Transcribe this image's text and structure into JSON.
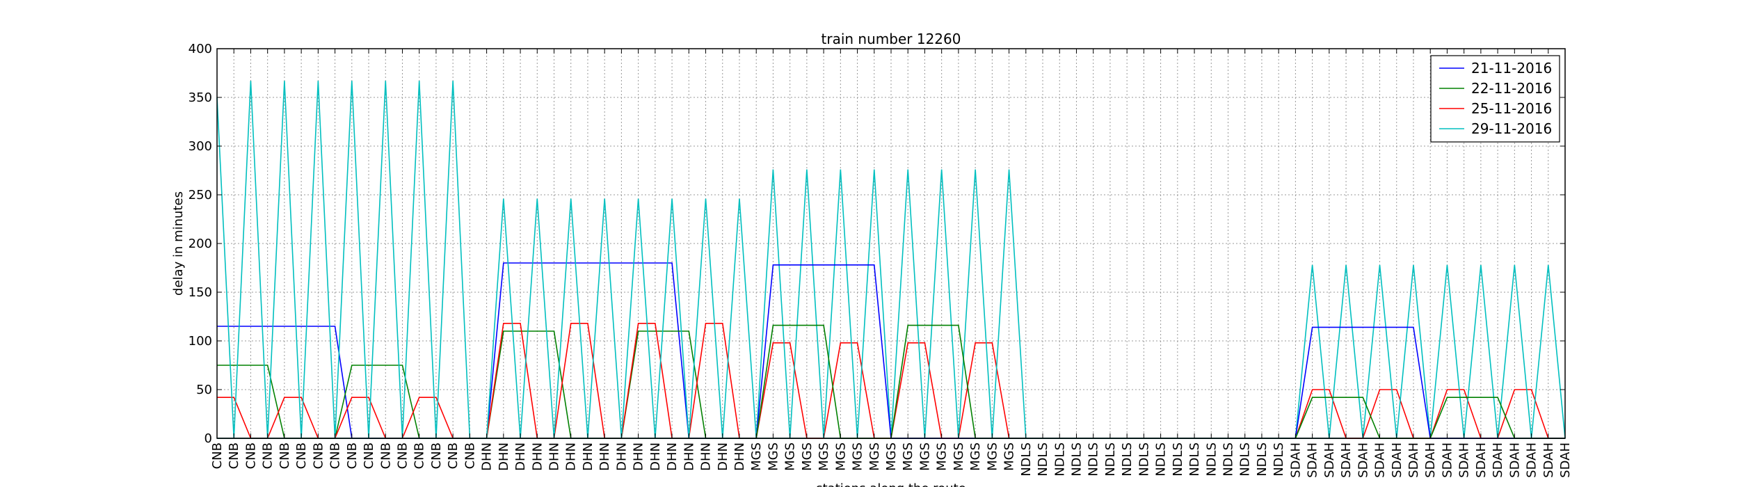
{
  "chart_data": {
    "type": "line",
    "title": "train number 12260",
    "xlabel": "stations along the route",
    "ylabel": "delay in minutes",
    "ylim": [
      0,
      400
    ],
    "yticks": [
      0,
      50,
      100,
      150,
      200,
      250,
      300,
      350,
      400
    ],
    "grid": true,
    "legend_position": "top-right",
    "categories": [
      "CNB",
      "CNB",
      "CNB",
      "CNB",
      "CNB",
      "CNB",
      "CNB",
      "CNB",
      "CNB",
      "CNB",
      "CNB",
      "CNB",
      "CNB",
      "CNB",
      "CNB",
      "CNB",
      "DHN",
      "DHN",
      "DHN",
      "DHN",
      "DHN",
      "DHN",
      "DHN",
      "DHN",
      "DHN",
      "DHN",
      "DHN",
      "DHN",
      "DHN",
      "DHN",
      "DHN",
      "DHN",
      "MGS",
      "MGS",
      "MGS",
      "MGS",
      "MGS",
      "MGS",
      "MGS",
      "MGS",
      "MGS",
      "MGS",
      "MGS",
      "MGS",
      "MGS",
      "MGS",
      "MGS",
      "MGS",
      "NDLS",
      "NDLS",
      "NDLS",
      "NDLS",
      "NDLS",
      "NDLS",
      "NDLS",
      "NDLS",
      "NDLS",
      "NDLS",
      "NDLS",
      "NDLS",
      "NDLS",
      "NDLS",
      "NDLS",
      "NDLS",
      "SDAH",
      "SDAH",
      "SDAH",
      "SDAH",
      "SDAH",
      "SDAH",
      "SDAH",
      "SDAH",
      "SDAH",
      "SDAH",
      "SDAH",
      "SDAH",
      "SDAH",
      "SDAH",
      "SDAH",
      "SDAH",
      "SDAH"
    ],
    "series": [
      {
        "name": "21-11-2016",
        "color": "#0000ff",
        "values": [
          115,
          115,
          115,
          115,
          115,
          115,
          115,
          115,
          0,
          0,
          0,
          0,
          0,
          0,
          0,
          0,
          0,
          180,
          180,
          180,
          180,
          180,
          180,
          180,
          180,
          180,
          180,
          180,
          0,
          0,
          0,
          0,
          0,
          0,
          0,
          0,
          0,
          0,
          0,
          0,
          0,
          0,
          0,
          0,
          0,
          0,
          0,
          0,
          0,
          0,
          0,
          0,
          0,
          0,
          0,
          0,
          0,
          0,
          0,
          0,
          0,
          0,
          0,
          0,
          0,
          0,
          0,
          0,
          0,
          0,
          0,
          0,
          0,
          0,
          0,
          0,
          0,
          0,
          0,
          0,
          0
        ]
      },
      {
        "name": "22-11-2016",
        "color": "#008000",
        "values": [
          75,
          75,
          75,
          75,
          0,
          0,
          0,
          0,
          75,
          75,
          75,
          75,
          0,
          0,
          0,
          0,
          0,
          110,
          110,
          110,
          110,
          0,
          0,
          0,
          0,
          110,
          110,
          110,
          110,
          0,
          0,
          0,
          0,
          0,
          0,
          0,
          0,
          0,
          0,
          0,
          0,
          0,
          0,
          0,
          0,
          0,
          0,
          0,
          0,
          0,
          0,
          0,
          0,
          0,
          0,
          0,
          0,
          0,
          0,
          0,
          0,
          0,
          0,
          0,
          0,
          0,
          0,
          0,
          0,
          0,
          0,
          0,
          0,
          0,
          0,
          0,
          0,
          0,
          0,
          0,
          0
        ]
      },
      {
        "name": "25-11-2016",
        "color": "#ff0000",
        "values": [
          42,
          42,
          0,
          0,
          42,
          42,
          0,
          0,
          42,
          42,
          0,
          0,
          42,
          42,
          0,
          0,
          0,
          118,
          118,
          0,
          0,
          118,
          118,
          0,
          0,
          118,
          118,
          0,
          0,
          118,
          118,
          0,
          0,
          98,
          98,
          0,
          0,
          98,
          98,
          0,
          0,
          98,
          98,
          0,
          0,
          98,
          98,
          0,
          0,
          0,
          0,
          0,
          0,
          0,
          0,
          0,
          0,
          0,
          0,
          0,
          0,
          0,
          0,
          0,
          0,
          50,
          50,
          0,
          0,
          50,
          50,
          0,
          0,
          50,
          50,
          0,
          0,
          50,
          50,
          0,
          0
        ]
      },
      {
        "name": "29-11-2016",
        "color": "#00bfbf",
        "values": [
          350,
          0,
          367,
          0,
          367,
          0,
          367,
          0,
          367,
          0,
          367,
          0,
          367,
          0,
          367,
          0,
          0,
          246,
          0,
          246,
          0,
          246,
          0,
          246,
          0,
          246,
          0,
          246,
          0,
          246,
          0,
          246,
          0,
          276,
          0,
          276,
          0,
          276,
          0,
          276,
          0,
          276,
          0,
          276,
          0,
          276,
          0,
          276,
          0,
          0,
          0,
          0,
          0,
          0,
          0,
          0,
          0,
          0,
          0,
          0,
          0,
          0,
          0,
          0,
          0,
          178,
          0,
          178,
          0,
          178,
          0,
          178,
          0,
          178,
          0,
          178,
          0,
          178,
          0,
          178,
          0
        ]
      }
    ],
    "overlays": [
      {
        "series": 0,
        "values": [
          0,
          0,
          0,
          0,
          0,
          0,
          0,
          0,
          0,
          0,
          0,
          0,
          0,
          0,
          0,
          0,
          0,
          0,
          0,
          0,
          0,
          0,
          0,
          0,
          0,
          0,
          0,
          0,
          0,
          0,
          0,
          0,
          0,
          178,
          178,
          178,
          178,
          178,
          178,
          178,
          0,
          0,
          0,
          0,
          0,
          0,
          0,
          0,
          0,
          0,
          0,
          0,
          0,
          0,
          0,
          0,
          0,
          0,
          0,
          0,
          0,
          0,
          0,
          0,
          0,
          114,
          114,
          114,
          114,
          114,
          114,
          114,
          0,
          0,
          0,
          0,
          0,
          0,
          0,
          0,
          0
        ]
      },
      {
        "series": 1,
        "values": [
          0,
          0,
          0,
          0,
          0,
          0,
          0,
          0,
          0,
          0,
          0,
          0,
          0,
          0,
          0,
          0,
          0,
          0,
          0,
          0,
          0,
          0,
          0,
          0,
          0,
          0,
          0,
          0,
          0,
          0,
          0,
          0,
          0,
          116,
          116,
          116,
          116,
          0,
          0,
          0,
          0,
          116,
          116,
          116,
          116,
          0,
          0,
          0,
          0,
          0,
          0,
          0,
          0,
          0,
          0,
          0,
          0,
          0,
          0,
          0,
          0,
          0,
          0,
          0,
          0,
          42,
          42,
          42,
          42,
          0,
          0,
          0,
          0,
          42,
          42,
          42,
          42,
          0,
          0,
          0,
          0
        ]
      }
    ]
  }
}
